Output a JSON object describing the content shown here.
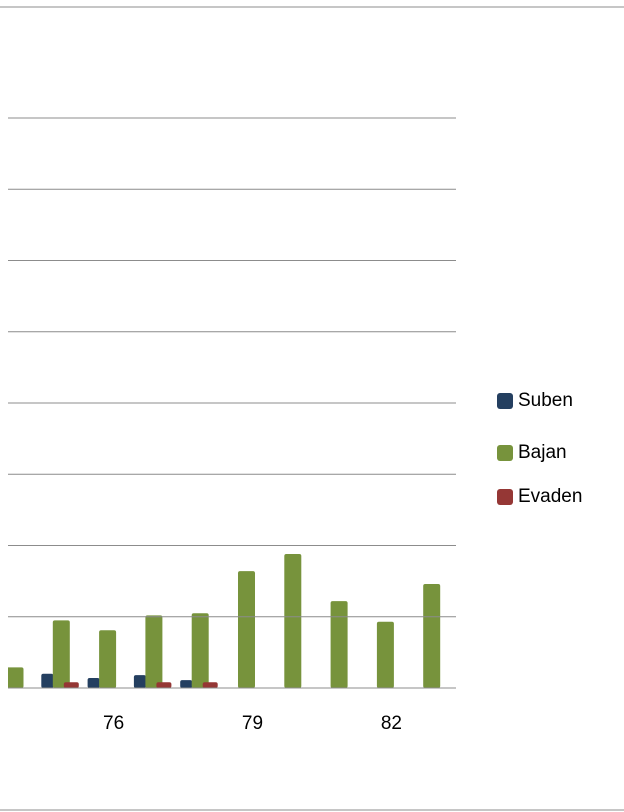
{
  "chart_data": {
    "type": "bar",
    "categories": [
      null,
      null,
      "76",
      null,
      null,
      "79",
      null,
      null,
      "82",
      null
    ],
    "series": [
      {
        "name": "Suben",
        "color": "#243f60",
        "values": [
          null,
          0.2,
          0.14,
          0.18,
          0.11,
          0,
          0,
          0,
          0,
          0
        ]
      },
      {
        "name": "Bajan",
        "color": "#77933c",
        "values": [
          0.29,
          0.95,
          0.81,
          1.02,
          1.05,
          1.64,
          1.88,
          1.22,
          0.93,
          1.46
        ]
      },
      {
        "name": "Evaden",
        "color": "#953735",
        "values": [
          null,
          0.08,
          0,
          0.08,
          0.08,
          0,
          0,
          0,
          0,
          0
        ]
      }
    ],
    "ylim": [
      0,
      8
    ],
    "yticks": [
      0,
      1,
      2,
      3,
      4,
      5,
      6,
      7,
      8
    ],
    "grid": true,
    "legend": "right"
  }
}
